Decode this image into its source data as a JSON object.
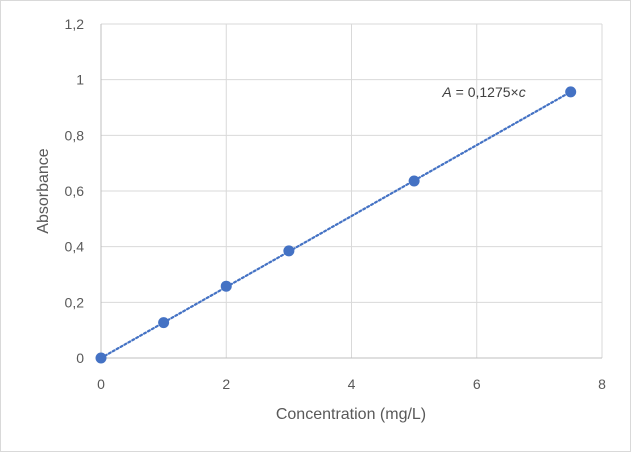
{
  "chart_data": {
    "type": "scatter",
    "xlabel": "Concentration (mg/L)",
    "ylabel": "Absorbance",
    "xlim": [
      0,
      8
    ],
    "ylim": [
      0,
      1.2
    ],
    "x_ticks": [
      0,
      2,
      4,
      6,
      8
    ],
    "y_ticks": [
      0,
      0.2,
      0.4,
      0.6,
      0.8,
      1,
      1.2
    ],
    "x_tick_labels": [
      "0",
      "2",
      "4",
      "6",
      "8"
    ],
    "y_tick_labels": [
      "0",
      "0,2",
      "0,4",
      "0,6",
      "0,8",
      "1",
      "1,2"
    ],
    "grid": true,
    "series": [
      {
        "x": [
          0,
          1,
          2,
          3,
          5,
          7.5
        ],
        "y": [
          0,
          0.127,
          0.258,
          0.385,
          0.636,
          0.956
        ],
        "color": "#4472c4"
      }
    ],
    "trendline": {
      "slope": 0.1275,
      "intercept": 0,
      "style": "dotted",
      "color": "#4472c4",
      "x_range": [
        0,
        7.5
      ]
    },
    "annotation": {
      "italic_a": "A",
      "middle": " = 0,1275×",
      "italic_c": "c",
      "at_x": 7.5,
      "at_y": 0.956
    }
  }
}
